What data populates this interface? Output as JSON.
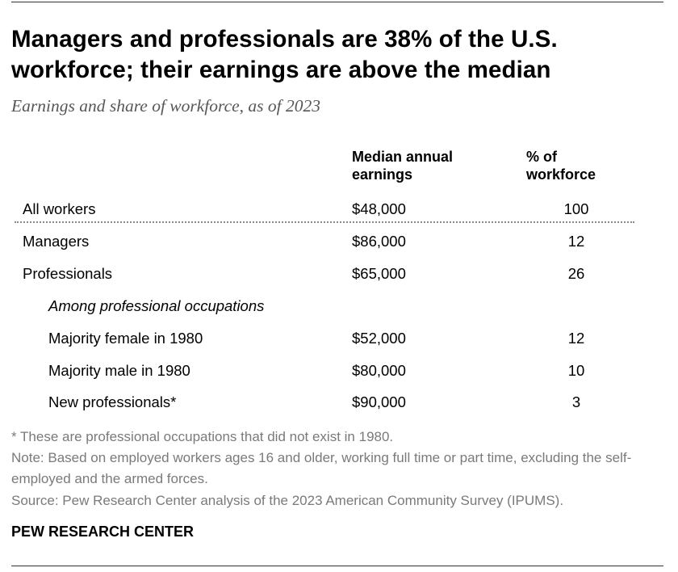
{
  "header": {
    "title": "Managers and professionals are 38% of the U.S. workforce; their earnings are above the median",
    "subtitle": "Earnings and share of workforce, as of 2023"
  },
  "chart_data": {
    "type": "table",
    "columns": [
      "Median annual earnings",
      "% of workforce"
    ],
    "rows": [
      {
        "label": "All workers",
        "earnings": "$48,000",
        "share": "100"
      },
      {
        "label": "Managers",
        "earnings": "$86,000",
        "share": "12"
      },
      {
        "label": "Professionals",
        "earnings": "$65,000",
        "share": "26"
      },
      {
        "label": "Among professional occupations",
        "earnings": "",
        "share": ""
      },
      {
        "label": "Majority female in 1980",
        "earnings": "$52,000",
        "share": "12"
      },
      {
        "label": "Majority male in 1980",
        "earnings": "$80,000",
        "share": "10"
      },
      {
        "label": "New professionals*",
        "earnings": "$90,000",
        "share": "3"
      }
    ]
  },
  "notes": {
    "footnote": "* These are professional occupations that did not exist in 1980.",
    "note": "Note: Based on employed workers ages 16 and older, working full time or part time, excluding the self-employed and the armed forces.",
    "source": "Source: Pew Research Center analysis of the 2023 American Community Survey (IPUMS)."
  },
  "brand": "PEW RESEARCH CENTER"
}
